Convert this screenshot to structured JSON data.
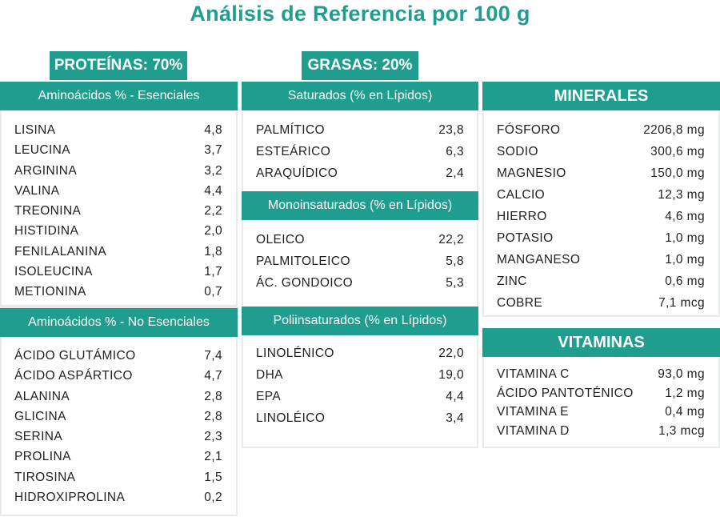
{
  "title": "Análisis de Referencia por 100 g",
  "tabs": {
    "proteinas": "PROTEÍNAS: 70%",
    "grasas": "GRASAS: 20%"
  },
  "colors": {
    "accent": "#1f9e8f",
    "panel_border": "#e9ebea"
  },
  "amino_esenciales": {
    "heading": "Aminoácidos % - Esenciales",
    "items": [
      {
        "name": "LISINA",
        "value": "4,8"
      },
      {
        "name": "LEUCINA",
        "value": "3,7"
      },
      {
        "name": "ARGININA",
        "value": "3,2"
      },
      {
        "name": "VALINA",
        "value": "4,4"
      },
      {
        "name": "TREONINA",
        "value": "2,2"
      },
      {
        "name": "HISTIDINA",
        "value": "2,0"
      },
      {
        "name": "FENILALANINA",
        "value": "1,8"
      },
      {
        "name": "ISOLEUCINA",
        "value": "1,7"
      },
      {
        "name": "METIONINA",
        "value": "0,7"
      }
    ]
  },
  "amino_no_esenciales": {
    "heading": "Aminoácidos % - No Esenciales",
    "items": [
      {
        "name": "ÁCIDO GLUTÁMICO",
        "value": "7,4"
      },
      {
        "name": "ÁCIDO ASPÁRTICO",
        "value": "4,7"
      },
      {
        "name": "ALANINA",
        "value": "2,8"
      },
      {
        "name": "GLICINA",
        "value": "2,8"
      },
      {
        "name": "SERINA",
        "value": "2,3"
      },
      {
        "name": "PROLINA",
        "value": "2,1"
      },
      {
        "name": "TIROSINA",
        "value": "1,5"
      },
      {
        "name": "HIDROXIPROLINA",
        "value": "0,2"
      }
    ]
  },
  "saturados": {
    "heading": "Saturados (% en Lípidos)",
    "items": [
      {
        "name": "PALMÍTICO",
        "value": "23,8"
      },
      {
        "name": "ESTEÁRICO",
        "value": "6,3"
      },
      {
        "name": "ARAQUÍDICO",
        "value": "2,4"
      }
    ]
  },
  "monoinsaturados": {
    "heading": "Monoinsaturados (% en Lípidos)",
    "items": [
      {
        "name": "OLEICO",
        "value": "22,2"
      },
      {
        "name": "PALMITOLEICO",
        "value": "5,8"
      },
      {
        "name": "ÁC. GONDOICO",
        "value": "5,3"
      }
    ]
  },
  "poliinsaturados": {
    "heading": "Poliinsaturados  (% en Lípidos)",
    "items": [
      {
        "name": "LINOLÉNICO",
        "value": "22,0"
      },
      {
        "name": "DHA",
        "value": "19,0"
      },
      {
        "name": "EPA",
        "value": "4,4"
      },
      {
        "name": "LINOLÉICO",
        "value": "3,4"
      }
    ]
  },
  "minerales": {
    "heading": "MINERALES",
    "items": [
      {
        "name": "FÓSFORO",
        "value": "2206,8 mg"
      },
      {
        "name": "SODIO",
        "value": "300,6 mg"
      },
      {
        "name": "MAGNESIO",
        "value": "150,0 mg"
      },
      {
        "name": "CALCIO",
        "value": "12,3 mg"
      },
      {
        "name": "HIERRO",
        "value": "4,6 mg"
      },
      {
        "name": "POTASIO",
        "value": "1,0 mg"
      },
      {
        "name": "MANGANESO",
        "value": "1,0 mg"
      },
      {
        "name": "ZINC",
        "value": "0,6 mg"
      },
      {
        "name": "COBRE",
        "value": "7,1 mcg"
      }
    ]
  },
  "vitaminas": {
    "heading": "VITAMINAS",
    "items": [
      {
        "name": "VITAMINA C",
        "value": "93,0 mg"
      },
      {
        "name": "ÁCIDO PANTOTÉNICO",
        "value": "1,2 mg"
      },
      {
        "name": "VITAMINA E",
        "value": "0,4 mg"
      },
      {
        "name": "VITAMINA D",
        "value": "1,3 mcg"
      }
    ]
  }
}
